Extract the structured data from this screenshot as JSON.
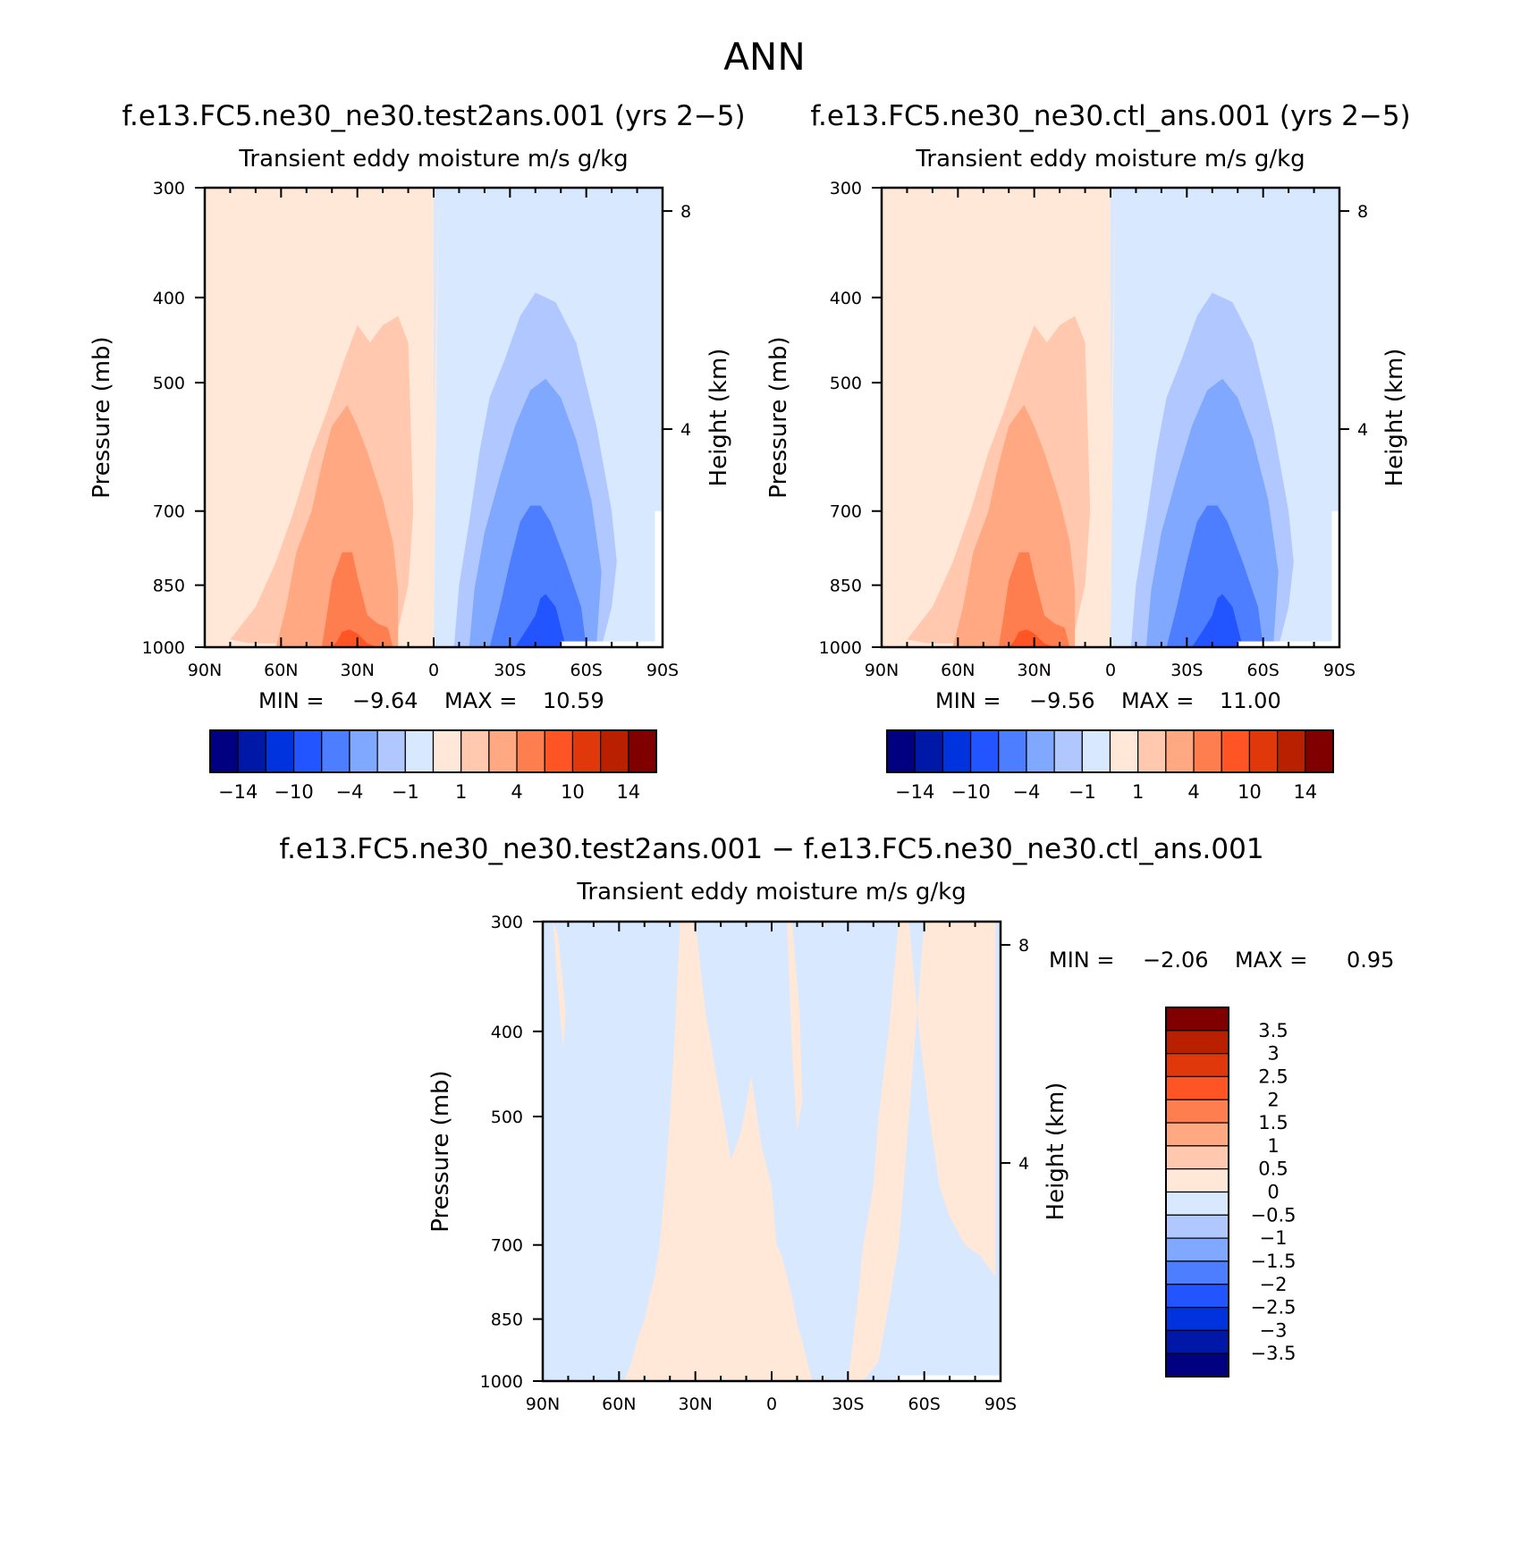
{
  "title": "ANN",
  "colors": {
    "scale": [
      "#000080",
      "#0018A8",
      "#0033DD",
      "#2255FF",
      "#4D7EFF",
      "#80A8FF",
      "#B0C8FF",
      "#D8E8FF",
      "#FFE8D8",
      "#FFC8AF",
      "#FFA882",
      "#FF7E50",
      "#FF5525",
      "#E0380A",
      "#B82000",
      "#800000"
    ],
    "frame": "#000000",
    "missing": "#ffffff"
  },
  "chart_data": [
    {
      "type": "heatmap",
      "panel": "test",
      "title": "f.e13.FC5.ne30_ne30.test2ans.001 (yrs 2−5)",
      "subtitle": "Transient  eddy  moisture m/s  g/kg",
      "ylabel": "Pressure  (mb)",
      "y2label": "Height  (km)",
      "x_tick_labels": [
        "90N",
        "60N",
        "30N",
        "0",
        "30S",
        "60S",
        "90S"
      ],
      "x_ticks": [
        90,
        60,
        30,
        0,
        -30,
        -60,
        -90
      ],
      "xlim": [
        90,
        -90
      ],
      "y_tick_labels": [
        "300",
        "400",
        "500",
        "700",
        "850",
        "1000"
      ],
      "y_ticks": [
        300,
        400,
        500,
        700,
        850,
        1000
      ],
      "ylim": [
        1000,
        300
      ],
      "y2_tick_labels": [
        "8",
        "4"
      ],
      "y2_ticks_km": [
        8,
        4
      ],
      "stats": {
        "min_label": "MIN =",
        "min": "−9.64",
        "max_label": "MAX =",
        "max": "10.59"
      },
      "colorbar": {
        "orientation": "horizontal",
        "levels": [
          -14,
          -12,
          -10,
          -8,
          -4,
          -2,
          -1,
          0,
          1,
          2,
          4,
          8,
          10,
          12,
          14
        ],
        "labels": [
          "−14",
          "−10",
          "−4",
          "−1",
          "1",
          "4",
          "10",
          "14"
        ],
        "label_level_indices": [
          0,
          2,
          4,
          6,
          8,
          10,
          12,
          14
        ]
      },
      "contours": [
        {
          "level": 0,
          "color_index": 8,
          "lat": [
            -2,
            -1,
            0,
            1,
            2,
            2,
            0
          ],
          "p": [
            300,
            420,
            560,
            700,
            850,
            1000,
            1000
          ]
        },
        {
          "level": 1,
          "color_index": 9,
          "lat": [
            80,
            70,
            62,
            55,
            48,
            42,
            35,
            30,
            25,
            20,
            14,
            10,
            8,
            10,
            15,
            30,
            45,
            60,
            72,
            80
          ],
          "p": [
            980,
            900,
            800,
            700,
            600,
            540,
            470,
            430,
            450,
            430,
            420,
            450,
            700,
            850,
            985,
            990,
            990,
            990,
            990,
            980
          ]
        },
        {
          "level": 2,
          "color_index": 10,
          "lat": [
            62,
            58,
            54,
            48,
            44,
            40,
            34,
            30,
            26,
            20,
            16,
            14,
            14,
            25,
            40,
            55
          ],
          "p": [
            1000,
            900,
            780,
            700,
            620,
            560,
            530,
            560,
            600,
            680,
            760,
            860,
            1000,
            1000,
            1000,
            1000
          ]
        },
        {
          "level": 4,
          "color_index": 11,
          "lat": [
            44,
            42,
            40,
            36,
            32,
            30,
            26,
            22,
            18,
            16,
            30,
            44
          ],
          "p": [
            1000,
            920,
            840,
            780,
            780,
            830,
            920,
            940,
            950,
            1000,
            1000,
            1000
          ]
        },
        {
          "level": 8,
          "color_index": 12,
          "lat": [
            40,
            38,
            36,
            33,
            30,
            26,
            22,
            28,
            40
          ],
          "p": [
            1000,
            985,
            960,
            955,
            965,
            990,
            1000,
            1000,
            1000
          ]
        },
        {
          "level": -1,
          "color_index": 6,
          "lat": [
            -8,
            -10,
            -14,
            -18,
            -22,
            -28,
            -34,
            -40,
            -48,
            -56,
            -64,
            -70,
            -72,
            -70,
            -66,
            -60,
            -50,
            -30,
            -12,
            -8
          ],
          "p": [
            1000,
            850,
            720,
            600,
            520,
            470,
            420,
            395,
            405,
            450,
            560,
            700,
            800,
            900,
            1000,
            1000,
            1000,
            1000,
            1000,
            1000
          ]
        },
        {
          "level": -2,
          "color_index": 5,
          "lat": [
            -14,
            -16,
            -20,
            -26,
            -32,
            -38,
            -44,
            -50,
            -56,
            -62,
            -66,
            -64,
            -50,
            -30,
            -14
          ],
          "p": [
            1000,
            860,
            740,
            640,
            560,
            510,
            495,
            520,
            580,
            680,
            820,
            1000,
            1000,
            1000,
            1000
          ]
        },
        {
          "level": -4,
          "color_index": 4,
          "lat": [
            -22,
            -26,
            -30,
            -34,
            -38,
            -42,
            -46,
            -52,
            -58,
            -60,
            -54,
            -40,
            -22
          ],
          "p": [
            1000,
            900,
            800,
            720,
            690,
            690,
            720,
            800,
            900,
            1000,
            1000,
            1000,
            1000
          ]
        },
        {
          "level": -8,
          "color_index": 3,
          "lat": [
            -32,
            -36,
            -40,
            -42,
            -44,
            -48,
            -52,
            -40,
            -32
          ],
          "p": [
            1000,
            960,
            920,
            880,
            870,
            900,
            1000,
            1000,
            1000
          ]
        }
      ]
    },
    {
      "type": "heatmap",
      "panel": "control",
      "title": "f.e13.FC5.ne30_ne30.ctl_ans.001 (yrs 2−5)",
      "subtitle": "Transient  eddy  moisture m/s  g/kg",
      "ylabel": "Pressure  (mb)",
      "y2label": "Height  (km)",
      "x_tick_labels": [
        "90N",
        "60N",
        "30N",
        "0",
        "30S",
        "60S",
        "90S"
      ],
      "x_ticks": [
        90,
        60,
        30,
        0,
        -30,
        -60,
        -90
      ],
      "xlim": [
        90,
        -90
      ],
      "y_tick_labels": [
        "300",
        "400",
        "500",
        "700",
        "850",
        "1000"
      ],
      "y_ticks": [
        300,
        400,
        500,
        700,
        850,
        1000
      ],
      "ylim": [
        1000,
        300
      ],
      "y2_tick_labels": [
        "8",
        "4"
      ],
      "y2_ticks_km": [
        8,
        4
      ],
      "stats": {
        "min_label": "MIN =",
        "min": "−9.56",
        "max_label": "MAX =",
        "max": "11.00"
      },
      "colorbar": {
        "orientation": "horizontal",
        "levels": [
          -14,
          -12,
          -10,
          -8,
          -4,
          -2,
          -1,
          0,
          1,
          2,
          4,
          8,
          10,
          12,
          14
        ],
        "labels": [
          "−14",
          "−10",
          "−4",
          "−1",
          "1",
          "4",
          "10",
          "14"
        ],
        "label_level_indices": [
          0,
          2,
          4,
          6,
          8,
          10,
          12,
          14
        ]
      },
      "contours": [
        {
          "level": 0,
          "color_index": 8,
          "lat": [
            -2,
            -1,
            0,
            1,
            2,
            2,
            0
          ],
          "p": [
            300,
            420,
            560,
            700,
            850,
            1000,
            1000
          ]
        },
        {
          "level": 1,
          "color_index": 9,
          "lat": [
            80,
            70,
            62,
            55,
            48,
            42,
            35,
            30,
            25,
            20,
            14,
            10,
            8,
            10,
            15,
            30,
            45,
            60,
            72,
            80
          ],
          "p": [
            980,
            900,
            800,
            700,
            600,
            540,
            470,
            430,
            450,
            430,
            420,
            450,
            700,
            850,
            985,
            990,
            990,
            990,
            990,
            980
          ]
        },
        {
          "level": 2,
          "color_index": 10,
          "lat": [
            62,
            58,
            54,
            48,
            44,
            40,
            34,
            30,
            26,
            20,
            16,
            14,
            14,
            25,
            40,
            55
          ],
          "p": [
            1000,
            900,
            780,
            700,
            620,
            560,
            530,
            560,
            600,
            680,
            760,
            860,
            1000,
            1000,
            1000,
            1000
          ]
        },
        {
          "level": 4,
          "color_index": 11,
          "lat": [
            44,
            42,
            40,
            36,
            32,
            30,
            26,
            22,
            18,
            16,
            30,
            44
          ],
          "p": [
            1000,
            920,
            840,
            780,
            780,
            830,
            920,
            940,
            950,
            1000,
            1000,
            1000
          ]
        },
        {
          "level": 8,
          "color_index": 12,
          "lat": [
            40,
            38,
            36,
            33,
            30,
            26,
            22,
            28,
            40
          ],
          "p": [
            1000,
            985,
            960,
            955,
            965,
            990,
            1000,
            1000,
            1000
          ]
        },
        {
          "level": -1,
          "color_index": 6,
          "lat": [
            -8,
            -10,
            -14,
            -18,
            -22,
            -28,
            -34,
            -40,
            -48,
            -56,
            -64,
            -70,
            -72,
            -70,
            -66,
            -60,
            -50,
            -30,
            -12,
            -8
          ],
          "p": [
            1000,
            850,
            720,
            600,
            520,
            470,
            420,
            395,
            405,
            450,
            560,
            700,
            800,
            900,
            1000,
            1000,
            1000,
            1000,
            1000,
            1000
          ]
        },
        {
          "level": -2,
          "color_index": 5,
          "lat": [
            -14,
            -16,
            -20,
            -26,
            -32,
            -38,
            -44,
            -50,
            -56,
            -62,
            -66,
            -64,
            -50,
            -30,
            -14
          ],
          "p": [
            1000,
            860,
            740,
            640,
            560,
            510,
            495,
            520,
            580,
            680,
            820,
            1000,
            1000,
            1000,
            1000
          ]
        },
        {
          "level": -4,
          "color_index": 4,
          "lat": [
            -22,
            -26,
            -30,
            -34,
            -38,
            -42,
            -46,
            -52,
            -58,
            -60,
            -54,
            -40,
            -22
          ],
          "p": [
            1000,
            900,
            800,
            720,
            690,
            690,
            720,
            800,
            900,
            1000,
            1000,
            1000,
            1000
          ]
        },
        {
          "level": -8,
          "color_index": 3,
          "lat": [
            -32,
            -36,
            -40,
            -42,
            -44,
            -48,
            -52,
            -40,
            -32
          ],
          "p": [
            1000,
            960,
            920,
            880,
            870,
            900,
            1000,
            1000,
            1000
          ]
        }
      ]
    },
    {
      "type": "heatmap",
      "panel": "difference",
      "title": "f.e13.FC5.ne30_ne30.test2ans.001 − f.e13.FC5.ne30_ne30.ctl_ans.001",
      "subtitle": "Transient  eddy  moisture m/s  g/kg",
      "ylabel": "Pressure  (mb)",
      "y2label": "Height  (km)",
      "x_tick_labels": [
        "90N",
        "60N",
        "30N",
        "0",
        "30S",
        "60S",
        "90S"
      ],
      "x_ticks": [
        90,
        60,
        30,
        0,
        -30,
        -60,
        -90
      ],
      "xlim": [
        90,
        -90
      ],
      "y_tick_labels": [
        "300",
        "400",
        "500",
        "700",
        "850",
        "1000"
      ],
      "y_ticks": [
        300,
        400,
        500,
        700,
        850,
        1000
      ],
      "ylim": [
        1000,
        300
      ],
      "y2_tick_labels": [
        "8",
        "4"
      ],
      "y2_ticks_km": [
        8,
        4
      ],
      "stats": {
        "min_label": "MIN =",
        "min": "−2.06",
        "max_label": "MAX =",
        "max": "0.95"
      },
      "colorbar": {
        "orientation": "vertical",
        "levels": [
          -3.5,
          -3,
          -2.5,
          -2,
          -1.5,
          -1,
          -0.5,
          0,
          0.5,
          1,
          1.5,
          2,
          2.5,
          3,
          3.5
        ],
        "labels": [
          "3.5",
          "3",
          "2.5",
          "2",
          "1.5",
          "1",
          "0.5",
          "0",
          "−0.5",
          "−1",
          "−1.5",
          "−2",
          "−2.5",
          "−3",
          "−3.5"
        ]
      },
      "regions": [
        {
          "value_range": [
            0,
            0.5
          ],
          "color_index": 8,
          "lat": [
            58,
            55,
            53,
            50,
            48,
            46,
            44,
            42,
            40,
            38,
            36,
            30,
            26,
            20,
            16,
            12,
            8,
            4,
            0,
            -2,
            -4,
            -6,
            -8,
            -10,
            -12,
            -14,
            -16,
            -18,
            -20,
            -18,
            -14,
            -8,
            0,
            10,
            20,
            30,
            40,
            48,
            54,
            58
          ],
          "p": [
            1000,
            950,
            900,
            850,
            800,
            760,
            700,
            600,
            500,
            400,
            300,
            300,
            380,
            480,
            560,
            520,
            450,
            540,
            600,
            700,
            720,
            760,
            800,
            860,
            900,
            950,
            1000,
            1000,
            1000,
            1000,
            1000,
            1000,
            1000,
            1000,
            1000,
            1000,
            1000,
            1000,
            1000,
            1000
          ]
        },
        {
          "value_range": [
            0,
            0.5
          ],
          "color_index": 8,
          "lat": [
            -30,
            -32,
            -34,
            -36,
            -40,
            -42,
            -46,
            -50,
            -54,
            -58,
            -62,
            -66,
            -70,
            -76,
            -82,
            -88,
            -88,
            -82,
            -70,
            -60,
            -50,
            -46,
            -42,
            -36,
            -30
          ],
          "p": [
            1000,
            900,
            800,
            700,
            600,
            500,
            400,
            300,
            300,
            400,
            500,
            600,
            650,
            700,
            720,
            760,
            300,
            300,
            300,
            300,
            700,
            820,
            950,
            1000,
            1000
          ]
        },
        {
          "value_range": [
            0,
            0.5
          ],
          "color_index": 8,
          "lat": [
            86,
            84,
            82,
            81,
            84,
            86
          ],
          "p": [
            300,
            360,
            420,
            380,
            310,
            300
          ]
        },
        {
          "value_range": [
            0,
            0.5
          ],
          "color_index": 8,
          "lat": [
            -6,
            -8,
            -10,
            -12,
            -11,
            -8,
            -6
          ],
          "p": [
            300,
            420,
            520,
            480,
            380,
            300,
            300
          ]
        }
      ]
    }
  ]
}
